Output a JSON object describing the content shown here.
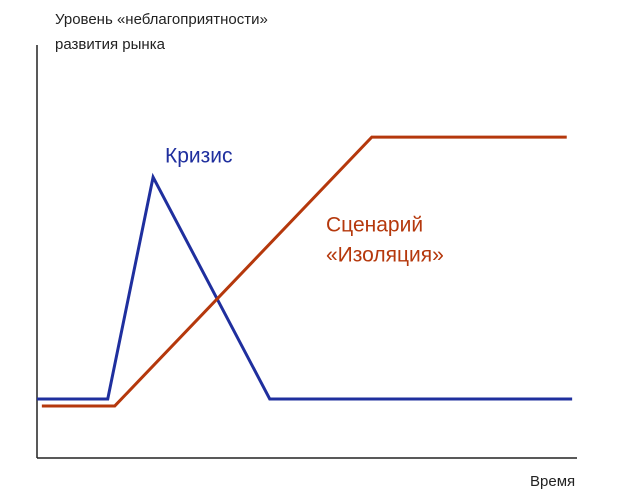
{
  "chart_data": {
    "type": "line",
    "y_label": [
      "Уровень «неблагоприятности»",
      "развития рынка"
    ],
    "x_label": "Время",
    "xlim": [
      0,
      100
    ],
    "ylim": [
      0,
      100
    ],
    "series": [
      {
        "color": "#1f2f9e",
        "x": [
          0,
          13.1,
          21.5,
          43.1,
          99.1
        ],
        "values": [
          14.3,
          14.3,
          68,
          14.3,
          14.3
        ]
      },
      {
        "color": "#b5380c",
        "x": [
          0.9,
          14.4,
          62,
          98.1
        ],
        "values": [
          12.6,
          12.6,
          77.7,
          77.7
        ]
      }
    ],
    "annotations": [
      {
        "text": [
          "Кризис"
        ],
        "color": "#1f2f9e"
      },
      {
        "text": [
          "Сценарий",
          "«Изоляция»"
        ],
        "color": "#b5380c"
      }
    ]
  }
}
